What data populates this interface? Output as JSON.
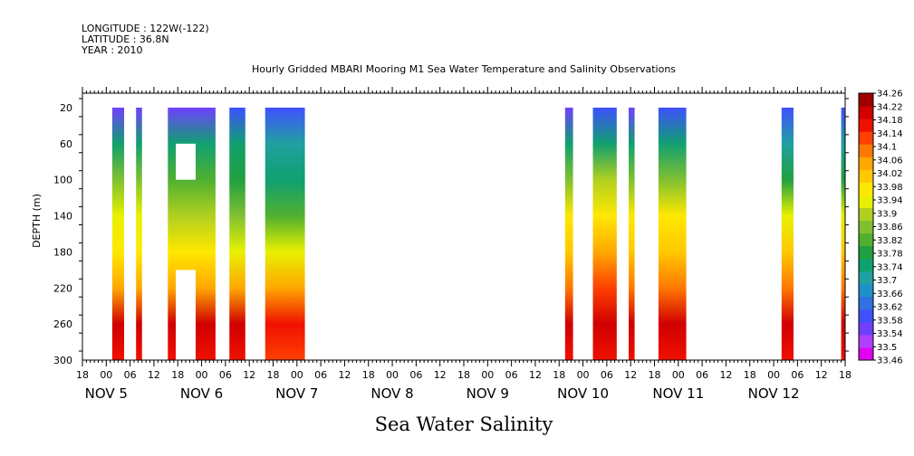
{
  "header": {
    "longitude": "LONGITUDE : 122W(-122)",
    "latitude": "LATITUDE : 36.8N",
    "year": "YEAR : 2010",
    "title": "Hourly Gridded MBARI Mooring M1 Sea Water Temperature and Salinity Observations"
  },
  "footer": {
    "variable": "Sea Water Salinity"
  },
  "chart_data": {
    "type": "heatmap",
    "title": "Hourly Gridded MBARI Mooring M1 Sea Water Temperature and Salinity Observations",
    "xlabel": "",
    "ylabel": "DEPTH (m)",
    "variable": "Sea Water Salinity",
    "x_range_hours": [
      -6,
      186
    ],
    "x_origin": "NOV 5 00",
    "y_range": [
      300,
      4
    ],
    "y_ticks": [
      20,
      60,
      100,
      140,
      180,
      220,
      260,
      300
    ],
    "x_hour_ticks": [
      "18",
      "00",
      "06",
      "12",
      "18",
      "00",
      "06",
      "12",
      "18",
      "00",
      "06",
      "12",
      "18",
      "00",
      "06",
      "12",
      "18",
      "00",
      "06",
      "12",
      "18",
      "00",
      "06",
      "12",
      "18",
      "00",
      "06",
      "12",
      "18",
      "00",
      "06",
      "12",
      "18"
    ],
    "x_date_labels": [
      "NOV  5",
      "NOV  6",
      "NOV  7",
      "NOV  8",
      "NOV  9",
      "NOV 10",
      "NOV 11",
      "NOV 12"
    ],
    "colorbar": {
      "min": 33.46,
      "max": 34.26,
      "labels": [
        "34.26",
        "34.22",
        "34.18",
        "34.14",
        "34.1",
        "34.06",
        "34.02",
        "33.98",
        "33.94",
        "33.9",
        "33.86",
        "33.82",
        "33.78",
        "33.74",
        "33.7",
        "33.66",
        "33.62",
        "33.58",
        "33.54",
        "33.5",
        "33.46"
      ],
      "colors": [
        "#e000f0",
        "#b040ff",
        "#7040ff",
        "#4050ff",
        "#3070e0",
        "#2090c8",
        "#20a0a0",
        "#10a070",
        "#20a040",
        "#50b030",
        "#80c030",
        "#b0d020",
        "#e8f000",
        "#ffe800",
        "#ffc800",
        "#ffa800",
        "#ff7800",
        "#ff4000",
        "#f01000",
        "#d00000",
        "#a00000"
      ]
    },
    "profile_depths": [
      20,
      60,
      100,
      140,
      180,
      220,
      260,
      300
    ],
    "segments": [
      {
        "start_h": 1.5,
        "end_h": 4.5,
        "profile": [
          33.54,
          33.74,
          33.86,
          33.92,
          33.98,
          34.06,
          34.22,
          34.18
        ]
      },
      {
        "start_h": 7.5,
        "end_h": 9,
        "profile": [
          33.54,
          33.74,
          33.86,
          33.92,
          33.98,
          34.06,
          34.22,
          34.18
        ]
      },
      {
        "start_h": 15.5,
        "end_h": 27.5,
        "profile": [
          33.56,
          33.74,
          33.82,
          33.88,
          33.96,
          34.06,
          34.22,
          34.18
        ]
      },
      {
        "start_h": 31,
        "end_h": 35,
        "profile": [
          33.58,
          33.74,
          33.8,
          33.86,
          33.92,
          34.06,
          34.2,
          34.18
        ]
      },
      {
        "start_h": 40,
        "end_h": 50,
        "profile": [
          33.58,
          33.72,
          33.76,
          33.84,
          33.94,
          34.06,
          34.18,
          34.14
        ]
      },
      {
        "start_h": 115.5,
        "end_h": 117.5,
        "profile": [
          33.56,
          33.74,
          33.86,
          33.96,
          34.02,
          34.1,
          34.22,
          34.18
        ]
      },
      {
        "start_h": 122.5,
        "end_h": 128.5,
        "profile": [
          33.58,
          33.74,
          33.88,
          33.98,
          34.04,
          34.12,
          34.22,
          34.18
        ]
      },
      {
        "start_h": 131.5,
        "end_h": 133,
        "profile": [
          33.56,
          33.74,
          33.86,
          33.96,
          34.02,
          34.1,
          34.22,
          34.18
        ]
      },
      {
        "start_h": 139,
        "end_h": 146,
        "profile": [
          33.58,
          33.74,
          33.86,
          33.96,
          34.02,
          34.1,
          34.22,
          34.18
        ]
      },
      {
        "start_h": 170,
        "end_h": 173,
        "profile": [
          33.6,
          33.72,
          33.8,
          33.92,
          34.0,
          34.08,
          34.2,
          34.18
        ]
      },
      {
        "start_h": 185,
        "end_h": 186,
        "profile": [
          33.6,
          33.72,
          33.8,
          33.92,
          34.0,
          34.08,
          34.2,
          34.18
        ]
      }
    ],
    "gaps": [
      {
        "start_h": 17.5,
        "end_h": 22.5,
        "depth_top": 60,
        "depth_bottom": 100
      },
      {
        "start_h": 17.5,
        "end_h": 22.5,
        "depth_top": 200,
        "depth_bottom": 300
      }
    ]
  }
}
